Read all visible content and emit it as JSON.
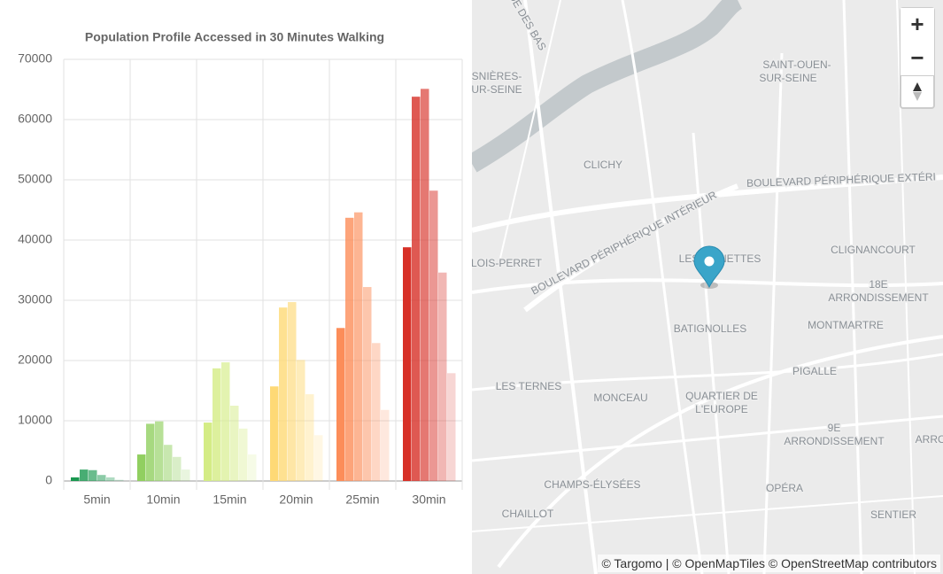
{
  "chart_data": {
    "type": "grouped-bar",
    "title": "Population Profile Accessed in 30 Minutes Walking",
    "categories": [
      "5min",
      "10min",
      "15min",
      "20min",
      "25min",
      "30min"
    ],
    "colors": [
      "#1a9850",
      "#91cf60",
      "#d4ec85",
      "#fed976",
      "#fc8d59",
      "#d73027"
    ],
    "values": [
      [
        600,
        1900,
        1800,
        1000,
        600,
        200
      ],
      [
        4400,
        9500,
        9900,
        6000,
        4000,
        1900
      ],
      [
        9700,
        18700,
        19700,
        12500,
        8700,
        4400
      ],
      [
        15700,
        28800,
        29700,
        20100,
        14400,
        7600
      ],
      [
        25400,
        43700,
        44600,
        32200,
        22900,
        11800
      ],
      [
        38800,
        63800,
        65100,
        48200,
        34600,
        17900
      ]
    ],
    "ylim": [
      0,
      70000
    ],
    "yticks": [
      0,
      10000,
      20000,
      30000,
      40000,
      50000,
      60000,
      70000
    ],
    "grid": true
  },
  "map": {
    "labels": [
      "DE DES BAS",
      "SNIÈRES-",
      "UR-SEINE",
      "SAINT-OUEN-",
      "SUR-SEINE",
      "CLICHY",
      "BOULEVARD PÉRIPHÉRIQUE EXTÉRI",
      "BOULEVARD PÉRIPHÉRIQUE INTÉRIEUR",
      "LOIS-PERRET",
      "LES ÉPINETTES",
      "CLIGNANCOURT",
      "18E",
      "ARRONDISSEMENT",
      "BATIGNOLLES",
      "MONTMARTRE",
      "PIGALLE",
      "LES TERNES",
      "MONCEAU",
      "QUARTIER DE",
      "L'EUROPE",
      "9E",
      "ARRONDISSEMENT",
      "ARRO",
      "CHAMPS-ÉLYSÉES",
      "OPÉRA",
      "CHAILLOT",
      "SENTIER"
    ],
    "controls": {
      "zoom_in": "+",
      "zoom_out": "−"
    },
    "attribution": "© Targomo | © OpenMapTiles © OpenStreetMap contributors"
  }
}
